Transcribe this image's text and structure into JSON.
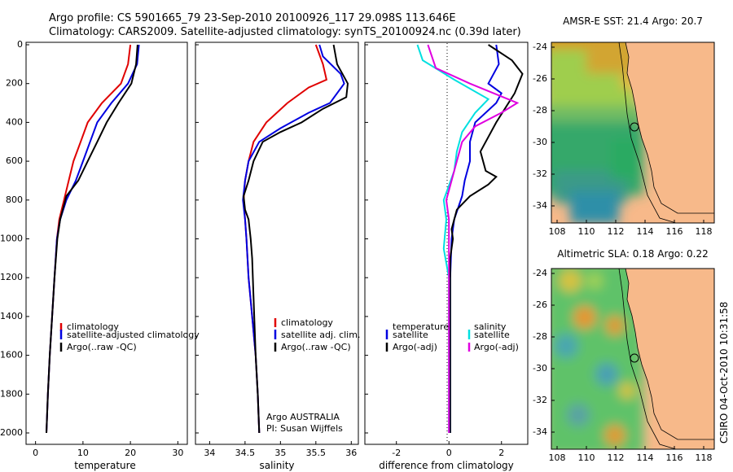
{
  "header": {
    "line1": "Argo profile: CS 5901665_79 23-Sep-2010 20100926_117 29.098S 113.646E",
    "line2": "Climatology: CARS2009. Satellite-adjusted climatology: synTS_20100924.nc (0.39d later)"
  },
  "colors": {
    "climatology": "#e00000",
    "satellite": "#0000e0",
    "argo": "#000000",
    "sat_salinity": "#00e0e0",
    "argo_salinity": "#e000e0",
    "land": "#f6b48a"
  },
  "depth_ticks": [
    "0",
    "200",
    "400",
    "600",
    "800",
    "1000",
    "1200",
    "1400",
    "1600",
    "1800",
    "2000"
  ],
  "map_lat_ticks": [
    "-24",
    "-26",
    "-28",
    "-30",
    "-32",
    "-34"
  ],
  "map_lon_ticks": [
    "108",
    "110",
    "112",
    "114",
    "116",
    "118"
  ],
  "map_sst_title": "AMSR-E SST: 21.4 Argo: 20.7",
  "map_sla_title": "Altimetric SLA: 0.18 Argo: 0.22",
  "timestamp": "CSIRO 04-Oct-2010 10:31:58",
  "credit": {
    "line1": "Argo AUSTRALIA",
    "line2": "PI: Susan Wijffels"
  },
  "chart_data": [
    {
      "type": "line",
      "xlabel": "temperature",
      "ylabel": "",
      "xlim": [
        -2,
        32
      ],
      "ylim": [
        2050,
        0
      ],
      "x_ticks": [
        "0",
        "10",
        "20",
        "30"
      ],
      "legend": [
        "climatology",
        "satellite-adjusted climatology",
        "Argo(..raw -QC)"
      ],
      "legend_position": "lower-right",
      "series": [
        {
          "name": "climatology",
          "color": "#e00000",
          "points": [
            [
              20,
              0
            ],
            [
              19.5,
              100
            ],
            [
              18,
              200
            ],
            [
              14,
              300
            ],
            [
              11,
              400
            ],
            [
              9.5,
              500
            ],
            [
              8,
              600
            ],
            [
              7,
              700
            ],
            [
              6,
              800
            ],
            [
              5,
              900
            ],
            [
              4.5,
              1000
            ],
            [
              4,
              1200
            ],
            [
              3.5,
              1400
            ],
            [
              3,
              1600
            ],
            [
              2.6,
              1800
            ],
            [
              2.3,
              2000
            ]
          ]
        },
        {
          "name": "satellite-adjusted climatology",
          "color": "#0000e0",
          "points": [
            [
              21.8,
              0
            ],
            [
              21.4,
              100
            ],
            [
              19.5,
              200
            ],
            [
              16,
              300
            ],
            [
              13,
              400
            ],
            [
              11.5,
              500
            ],
            [
              10,
              600
            ],
            [
              8.5,
              700
            ],
            [
              6.5,
              800
            ],
            [
              5.2,
              900
            ],
            [
              4.5,
              1000
            ],
            [
              4,
              1200
            ],
            [
              3.5,
              1400
            ],
            [
              3,
              1600
            ],
            [
              2.6,
              1800
            ],
            [
              2.3,
              2000
            ]
          ]
        },
        {
          "name": "Argo(..raw -QC)",
          "color": "#000000",
          "points": [
            [
              21.5,
              0
            ],
            [
              21.2,
              100
            ],
            [
              20.2,
              200
            ],
            [
              17.5,
              300
            ],
            [
              15,
              400
            ],
            [
              13,
              500
            ],
            [
              11,
              600
            ],
            [
              9,
              700
            ],
            [
              6.5,
              780
            ],
            [
              5.2,
              900
            ],
            [
              4.6,
              1000
            ],
            [
              4,
              1200
            ],
            [
              3.5,
              1400
            ],
            [
              3,
              1600
            ],
            [
              2.6,
              1800
            ],
            [
              2.3,
              2000
            ]
          ]
        }
      ]
    },
    {
      "type": "line",
      "xlabel": "salinity",
      "ylabel": "",
      "xlim": [
        33.8,
        36.1
      ],
      "ylim": [
        2050,
        0
      ],
      "x_ticks": [
        "34",
        "34.5",
        "35",
        "35.5",
        "36"
      ],
      "legend": [
        "climatology",
        "satellite adj. clim.",
        "Argo(..raw -QC)"
      ],
      "legend_position": "lower-right",
      "series": [
        {
          "name": "climatology",
          "color": "#e00000",
          "points": [
            [
              35.5,
              0
            ],
            [
              35.6,
              100
            ],
            [
              35.65,
              180
            ],
            [
              35.4,
              220
            ],
            [
              35.1,
              300
            ],
            [
              34.8,
              400
            ],
            [
              34.62,
              500
            ],
            [
              34.55,
              600
            ],
            [
              34.5,
              700
            ],
            [
              34.48,
              800
            ],
            [
              34.5,
              900
            ],
            [
              34.52,
              1000
            ],
            [
              34.55,
              1200
            ],
            [
              34.6,
              1400
            ],
            [
              34.65,
              1600
            ],
            [
              34.68,
              1800
            ],
            [
              34.7,
              2000
            ]
          ]
        },
        {
          "name": "satellite adj. clim.",
          "color": "#0000e0",
          "points": [
            [
              35.55,
              0
            ],
            [
              35.6,
              60
            ],
            [
              35.85,
              150
            ],
            [
              35.9,
              200
            ],
            [
              35.7,
              300
            ],
            [
              35.4,
              350
            ],
            [
              35.0,
              430
            ],
            [
              34.7,
              500
            ],
            [
              34.55,
              600
            ],
            [
              34.5,
              700
            ],
            [
              34.47,
              800
            ],
            [
              34.5,
              900
            ],
            [
              34.52,
              1000
            ],
            [
              34.55,
              1200
            ],
            [
              34.6,
              1400
            ],
            [
              34.65,
              1600
            ],
            [
              34.68,
              1800
            ],
            [
              34.7,
              2000
            ]
          ]
        },
        {
          "name": "Argo(..raw -QC)",
          "color": "#000000",
          "points": [
            [
              35.75,
              0
            ],
            [
              35.8,
              100
            ],
            [
              35.95,
              200
            ],
            [
              35.93,
              270
            ],
            [
              35.6,
              330
            ],
            [
              35.3,
              400
            ],
            [
              35.0,
              450
            ],
            [
              34.75,
              500
            ],
            [
              34.62,
              600
            ],
            [
              34.55,
              700
            ],
            [
              34.48,
              780
            ],
            [
              34.5,
              850
            ],
            [
              34.55,
              900
            ],
            [
              34.58,
              1000
            ],
            [
              34.6,
              1100
            ],
            [
              34.62,
              1300
            ],
            [
              34.65,
              1600
            ],
            [
              34.68,
              1800
            ],
            [
              34.7,
              2000
            ]
          ]
        }
      ]
    },
    {
      "type": "line",
      "xlabel": "difference from climatology",
      "ylabel": "",
      "xlim": [
        -3.2,
        3.0
      ],
      "ylim": [
        2050,
        0
      ],
      "x_ticks": [
        "-2",
        "0",
        "2"
      ],
      "legend_left": [
        "temperature",
        "satellite",
        "Argo(-adj)"
      ],
      "legend_right": [
        "salinity",
        "satellite",
        "Argo(-adj)"
      ],
      "legend_position": "lower-center",
      "series": [
        {
          "name": "satellite",
          "color": "#0000e0",
          "points": [
            [
              1.8,
              0
            ],
            [
              1.9,
              100
            ],
            [
              1.5,
              200
            ],
            [
              2.0,
              250
            ],
            [
              1.8,
              300
            ],
            [
              1.0,
              400
            ],
            [
              0.8,
              500
            ],
            [
              0.8,
              600
            ],
            [
              0.6,
              700
            ],
            [
              0.5,
              780
            ],
            [
              0.2,
              900
            ],
            [
              0.1,
              1000
            ],
            [
              0.05,
              1200
            ],
            [
              0.05,
              2000
            ]
          ]
        },
        {
          "name": "Argo(-adj)",
          "color": "#000000",
          "points": [
            [
              1.5,
              0
            ],
            [
              2.4,
              80
            ],
            [
              2.8,
              150
            ],
            [
              2.5,
              250
            ],
            [
              1.8,
              400
            ],
            [
              1.2,
              550
            ],
            [
              1.4,
              650
            ],
            [
              1.8,
              680
            ],
            [
              1.5,
              720
            ],
            [
              0.8,
              780
            ],
            [
              0.3,
              850
            ],
            [
              0.1,
              950
            ],
            [
              0.15,
              1000
            ],
            [
              0.05,
              1100
            ],
            [
              0.05,
              2000
            ]
          ]
        },
        {
          "name": "satellite",
          "color": "#00e0e0",
          "points": [
            [
              -1.2,
              0
            ],
            [
              -1.0,
              80
            ],
            [
              0.2,
              180
            ],
            [
              1.5,
              280
            ],
            [
              1.0,
              350
            ],
            [
              0.5,
              450
            ],
            [
              0.3,
              550
            ],
            [
              0.2,
              650
            ],
            [
              -0.2,
              800
            ],
            [
              -0.1,
              900
            ],
            [
              -0.2,
              1050
            ],
            [
              0,
              1200
            ],
            [
              0,
              2000
            ]
          ]
        },
        {
          "name": "Argo(-adj)",
          "color": "#e000e0",
          "points": [
            [
              -0.8,
              0
            ],
            [
              -0.5,
              120
            ],
            [
              0.8,
              200
            ],
            [
              2.6,
              300
            ],
            [
              2.0,
              350
            ],
            [
              1.0,
              420
            ],
            [
              0.5,
              500
            ],
            [
              0.3,
              600
            ],
            [
              0.1,
              700
            ],
            [
              -0.1,
              800
            ],
            [
              0,
              900
            ],
            [
              0,
              2000
            ]
          ]
        }
      ]
    }
  ]
}
